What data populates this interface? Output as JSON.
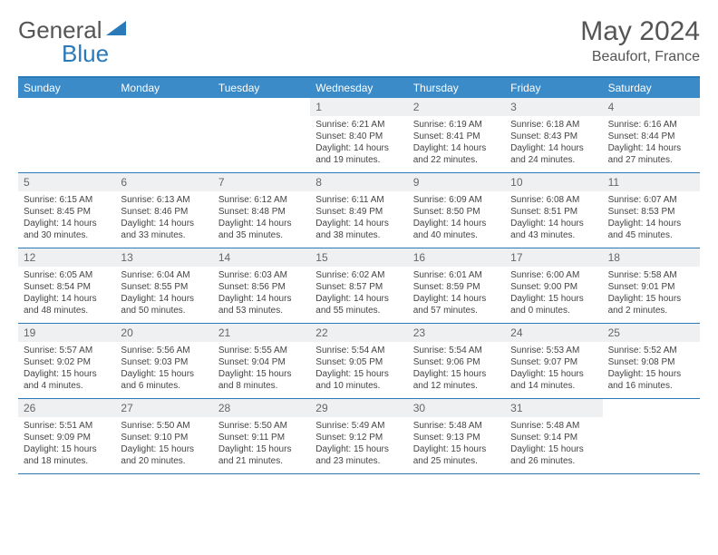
{
  "logo": {
    "general": "General",
    "blue": "Blue"
  },
  "header": {
    "title": "May 2024",
    "location": "Beaufort, France"
  },
  "colors": {
    "accent": "#3b8bc9",
    "border": "#2a7ab9",
    "dateBg": "#eef0f1",
    "text": "#444"
  },
  "dayNames": [
    "Sunday",
    "Monday",
    "Tuesday",
    "Wednesday",
    "Thursday",
    "Friday",
    "Saturday"
  ],
  "weeks": [
    [
      {
        "date": "",
        "sunrise": "",
        "sunset": "",
        "daylight": ""
      },
      {
        "date": "",
        "sunrise": "",
        "sunset": "",
        "daylight": ""
      },
      {
        "date": "",
        "sunrise": "",
        "sunset": "",
        "daylight": ""
      },
      {
        "date": "1",
        "sunrise": "Sunrise: 6:21 AM",
        "sunset": "Sunset: 8:40 PM",
        "daylight": "Daylight: 14 hours and 19 minutes."
      },
      {
        "date": "2",
        "sunrise": "Sunrise: 6:19 AM",
        "sunset": "Sunset: 8:41 PM",
        "daylight": "Daylight: 14 hours and 22 minutes."
      },
      {
        "date": "3",
        "sunrise": "Sunrise: 6:18 AM",
        "sunset": "Sunset: 8:43 PM",
        "daylight": "Daylight: 14 hours and 24 minutes."
      },
      {
        "date": "4",
        "sunrise": "Sunrise: 6:16 AM",
        "sunset": "Sunset: 8:44 PM",
        "daylight": "Daylight: 14 hours and 27 minutes."
      }
    ],
    [
      {
        "date": "5",
        "sunrise": "Sunrise: 6:15 AM",
        "sunset": "Sunset: 8:45 PM",
        "daylight": "Daylight: 14 hours and 30 minutes."
      },
      {
        "date": "6",
        "sunrise": "Sunrise: 6:13 AM",
        "sunset": "Sunset: 8:46 PM",
        "daylight": "Daylight: 14 hours and 33 minutes."
      },
      {
        "date": "7",
        "sunrise": "Sunrise: 6:12 AM",
        "sunset": "Sunset: 8:48 PM",
        "daylight": "Daylight: 14 hours and 35 minutes."
      },
      {
        "date": "8",
        "sunrise": "Sunrise: 6:11 AM",
        "sunset": "Sunset: 8:49 PM",
        "daylight": "Daylight: 14 hours and 38 minutes."
      },
      {
        "date": "9",
        "sunrise": "Sunrise: 6:09 AM",
        "sunset": "Sunset: 8:50 PM",
        "daylight": "Daylight: 14 hours and 40 minutes."
      },
      {
        "date": "10",
        "sunrise": "Sunrise: 6:08 AM",
        "sunset": "Sunset: 8:51 PM",
        "daylight": "Daylight: 14 hours and 43 minutes."
      },
      {
        "date": "11",
        "sunrise": "Sunrise: 6:07 AM",
        "sunset": "Sunset: 8:53 PM",
        "daylight": "Daylight: 14 hours and 45 minutes."
      }
    ],
    [
      {
        "date": "12",
        "sunrise": "Sunrise: 6:05 AM",
        "sunset": "Sunset: 8:54 PM",
        "daylight": "Daylight: 14 hours and 48 minutes."
      },
      {
        "date": "13",
        "sunrise": "Sunrise: 6:04 AM",
        "sunset": "Sunset: 8:55 PM",
        "daylight": "Daylight: 14 hours and 50 minutes."
      },
      {
        "date": "14",
        "sunrise": "Sunrise: 6:03 AM",
        "sunset": "Sunset: 8:56 PM",
        "daylight": "Daylight: 14 hours and 53 minutes."
      },
      {
        "date": "15",
        "sunrise": "Sunrise: 6:02 AM",
        "sunset": "Sunset: 8:57 PM",
        "daylight": "Daylight: 14 hours and 55 minutes."
      },
      {
        "date": "16",
        "sunrise": "Sunrise: 6:01 AM",
        "sunset": "Sunset: 8:59 PM",
        "daylight": "Daylight: 14 hours and 57 minutes."
      },
      {
        "date": "17",
        "sunrise": "Sunrise: 6:00 AM",
        "sunset": "Sunset: 9:00 PM",
        "daylight": "Daylight: 15 hours and 0 minutes."
      },
      {
        "date": "18",
        "sunrise": "Sunrise: 5:58 AM",
        "sunset": "Sunset: 9:01 PM",
        "daylight": "Daylight: 15 hours and 2 minutes."
      }
    ],
    [
      {
        "date": "19",
        "sunrise": "Sunrise: 5:57 AM",
        "sunset": "Sunset: 9:02 PM",
        "daylight": "Daylight: 15 hours and 4 minutes."
      },
      {
        "date": "20",
        "sunrise": "Sunrise: 5:56 AM",
        "sunset": "Sunset: 9:03 PM",
        "daylight": "Daylight: 15 hours and 6 minutes."
      },
      {
        "date": "21",
        "sunrise": "Sunrise: 5:55 AM",
        "sunset": "Sunset: 9:04 PM",
        "daylight": "Daylight: 15 hours and 8 minutes."
      },
      {
        "date": "22",
        "sunrise": "Sunrise: 5:54 AM",
        "sunset": "Sunset: 9:05 PM",
        "daylight": "Daylight: 15 hours and 10 minutes."
      },
      {
        "date": "23",
        "sunrise": "Sunrise: 5:54 AM",
        "sunset": "Sunset: 9:06 PM",
        "daylight": "Daylight: 15 hours and 12 minutes."
      },
      {
        "date": "24",
        "sunrise": "Sunrise: 5:53 AM",
        "sunset": "Sunset: 9:07 PM",
        "daylight": "Daylight: 15 hours and 14 minutes."
      },
      {
        "date": "25",
        "sunrise": "Sunrise: 5:52 AM",
        "sunset": "Sunset: 9:08 PM",
        "daylight": "Daylight: 15 hours and 16 minutes."
      }
    ],
    [
      {
        "date": "26",
        "sunrise": "Sunrise: 5:51 AM",
        "sunset": "Sunset: 9:09 PM",
        "daylight": "Daylight: 15 hours and 18 minutes."
      },
      {
        "date": "27",
        "sunrise": "Sunrise: 5:50 AM",
        "sunset": "Sunset: 9:10 PM",
        "daylight": "Daylight: 15 hours and 20 minutes."
      },
      {
        "date": "28",
        "sunrise": "Sunrise: 5:50 AM",
        "sunset": "Sunset: 9:11 PM",
        "daylight": "Daylight: 15 hours and 21 minutes."
      },
      {
        "date": "29",
        "sunrise": "Sunrise: 5:49 AM",
        "sunset": "Sunset: 9:12 PM",
        "daylight": "Daylight: 15 hours and 23 minutes."
      },
      {
        "date": "30",
        "sunrise": "Sunrise: 5:48 AM",
        "sunset": "Sunset: 9:13 PM",
        "daylight": "Daylight: 15 hours and 25 minutes."
      },
      {
        "date": "31",
        "sunrise": "Sunrise: 5:48 AM",
        "sunset": "Sunset: 9:14 PM",
        "daylight": "Daylight: 15 hours and 26 minutes."
      },
      {
        "date": "",
        "sunrise": "",
        "sunset": "",
        "daylight": ""
      }
    ]
  ]
}
